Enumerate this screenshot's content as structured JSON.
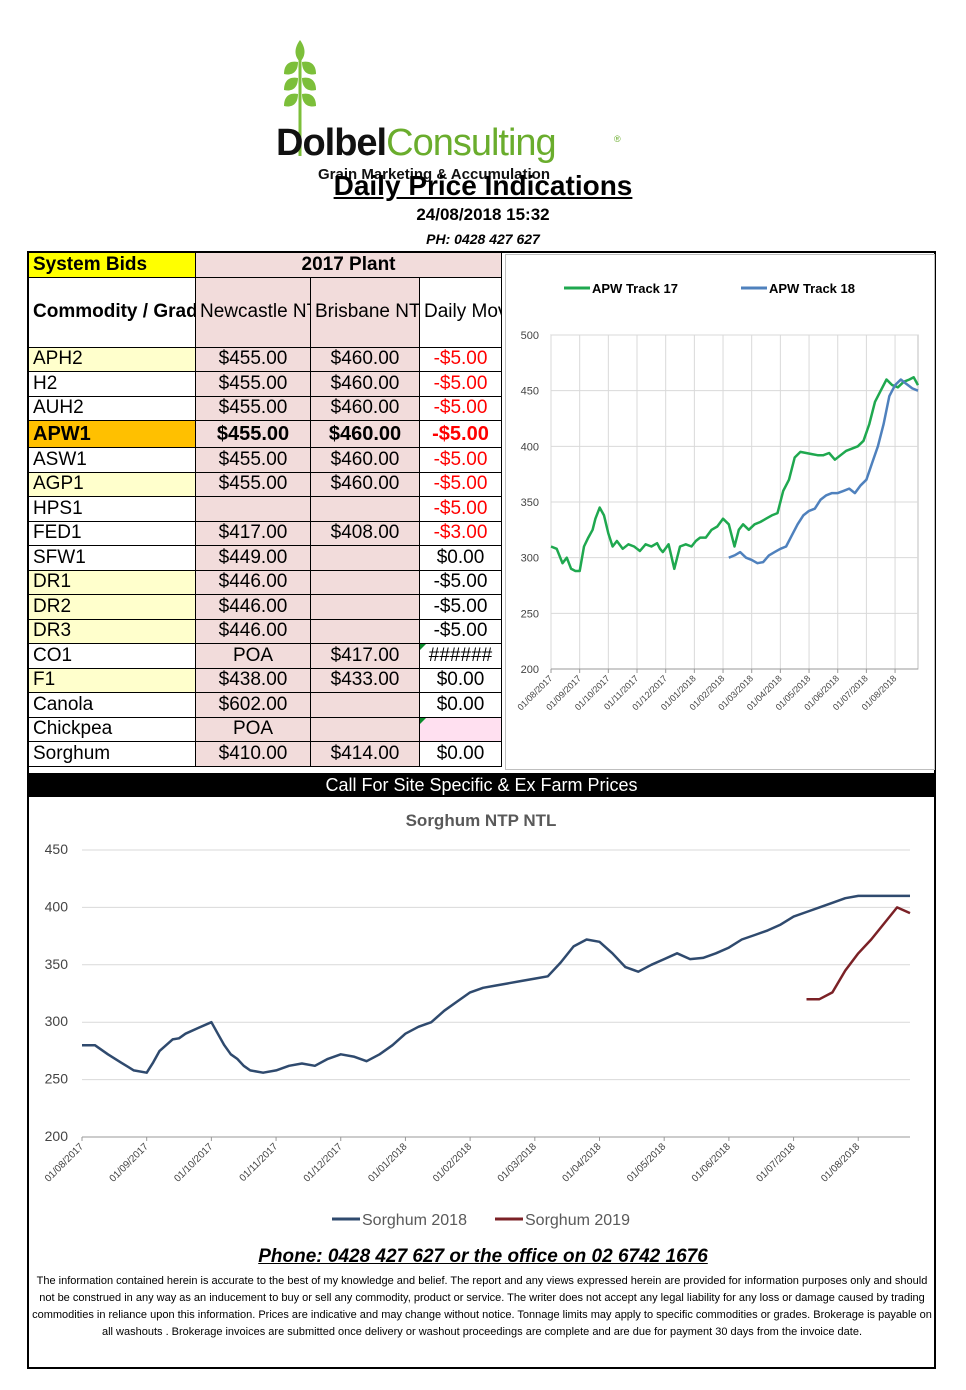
{
  "brand": {
    "name_part1": "Dolbel",
    "name_part2": "Consulting",
    "registered": "®",
    "tagline": "Grain Marketing & Accumulation"
  },
  "header": {
    "title": "Daily Price Indications",
    "datetime": "24/08/2018 15:32",
    "phone": "PH: 0428 427 627"
  },
  "table": {
    "system_bids": "System Bids",
    "plant_label": "2017 Plant",
    "col_commodity": "Commodity / Grade / NTP",
    "col_newcastle": "Newcastle NTP TRK",
    "col_brisbane": "Brisbane NTP TRK",
    "col_move": "Daily Move NTL",
    "rows": [
      {
        "name": "APH2",
        "newcastle": "$455.00",
        "brisbane": "$460.00",
        "move": "-$5.00"
      },
      {
        "name": "H2",
        "newcastle": "$455.00",
        "brisbane": "$460.00",
        "move": "-$5.00"
      },
      {
        "name": "AUH2",
        "newcastle": "$455.00",
        "brisbane": "$460.00",
        "move": "-$5.00"
      },
      {
        "name": "APW1",
        "newcastle": "$455.00",
        "brisbane": "$460.00",
        "move": "-$5.00"
      },
      {
        "name": "ASW1",
        "newcastle": "$455.00",
        "brisbane": "$460.00",
        "move": "-$5.00"
      },
      {
        "name": "AGP1",
        "newcastle": "$455.00",
        "brisbane": "$460.00",
        "move": "-$5.00"
      },
      {
        "name": "HPS1",
        "newcastle": "",
        "brisbane": "",
        "move": "-$5.00"
      },
      {
        "name": "FED1",
        "newcastle": "$417.00",
        "brisbane": "$408.00",
        "move": "-$3.00"
      },
      {
        "name": "SFW1",
        "newcastle": "$449.00",
        "brisbane": "",
        "move": "$0.00"
      },
      {
        "name": "DR1",
        "newcastle": "$446.00",
        "brisbane": "",
        "move": "-$5.00"
      },
      {
        "name": "DR2",
        "newcastle": "$446.00",
        "brisbane": "",
        "move": "-$5.00"
      },
      {
        "name": "DR3",
        "newcastle": "$446.00",
        "brisbane": "",
        "move": "-$5.00"
      },
      {
        "name": "CO1",
        "newcastle": "POA",
        "brisbane": "$417.00",
        "move": "######"
      },
      {
        "name": "F1",
        "newcastle": "$438.00",
        "brisbane": "$433.00",
        "move": "$0.00"
      },
      {
        "name": "Canola",
        "newcastle": "$602.00",
        "brisbane": "",
        "move": "$0.00"
      },
      {
        "name": "Chickpea",
        "newcastle": "POA",
        "brisbane": "",
        "move": ""
      },
      {
        "name": "Sorghum",
        "newcastle": "$410.00",
        "brisbane": "$414.00",
        "move": "$0.00"
      }
    ]
  },
  "call_bar": "Call For Site Specific & Ex Farm Prices",
  "footer": {
    "phone": "Phone: 0428 427 627 or the office on 02 6742 1676",
    "disclaimer": "The information contained herein is accurate to the best of my knowledge and belief.  The report and any views expressed herein are provided for information purposes only and should not be construed in any way as an inducement to buy or sell any commodity, product or service. The writer does not accept any legal liability for any loss or damage caused by trading commodities in reliance upon this information. Prices are indicative and may change without notice. Tonnage limits may apply to specific commodities or grades.  Brokerage is payable on all washouts . Brokerage invoices are submitted once delivery or washout proceedings are complete and are due for payment 30 days from the invoice date."
  },
  "chart_data": [
    {
      "type": "line",
      "title": "",
      "ylim": [
        200,
        500
      ],
      "yticks": [
        200,
        250,
        300,
        350,
        400,
        450,
        500
      ],
      "xticks": [
        "01/08/2017",
        "01/09/2017",
        "01/10/2017",
        "01/11/2017",
        "01/12/2017",
        "01/01/2018",
        "01/02/2018",
        "01/03/2018",
        "01/04/2018",
        "01/05/2018",
        "01/06/2018",
        "01/07/2018",
        "01/08/2018"
      ],
      "grid": true,
      "legend": "top",
      "colors": {
        "APW Track 17": "#1fa84f",
        "APW Track 18": "#4f81bd"
      },
      "series": [
        {
          "name": "APW Track 17",
          "x": [
            0,
            0.2,
            0.4,
            0.55,
            0.7,
            0.85,
            1.0,
            1.15,
            1.3,
            1.45,
            1.55,
            1.7,
            1.85,
            2.0,
            2.15,
            2.3,
            2.5,
            2.7,
            2.9,
            3.1,
            3.3,
            3.5,
            3.7,
            3.8,
            3.9,
            4.1,
            4.3,
            4.5,
            4.7,
            4.9,
            5.05,
            5.2,
            5.4,
            5.6,
            5.8,
            6.0,
            6.2,
            6.4,
            6.55,
            6.7,
            6.9,
            7.1,
            7.3,
            7.5,
            7.7,
            7.9,
            8.1,
            8.3,
            8.5,
            8.7,
            8.9,
            9.1,
            9.3,
            9.5,
            9.7,
            9.9,
            10.1,
            10.3,
            10.5,
            10.7,
            10.9,
            11.1,
            11.3,
            11.5,
            11.7,
            11.9,
            12.1,
            12.3,
            12.5,
            12.65,
            12.8
          ],
          "y": [
            310,
            308,
            295,
            300,
            290,
            288,
            288,
            310,
            318,
            325,
            335,
            345,
            338,
            322,
            310,
            315,
            308,
            312,
            310,
            306,
            312,
            310,
            313,
            308,
            305,
            312,
            290,
            310,
            312,
            310,
            315,
            318,
            318,
            325,
            328,
            335,
            330,
            310,
            325,
            330,
            325,
            330,
            332,
            335,
            338,
            340,
            360,
            370,
            390,
            395,
            394,
            393,
            392,
            392,
            394,
            388,
            392,
            396,
            398,
            400,
            405,
            420,
            440,
            450,
            460,
            455,
            453,
            458,
            460,
            462,
            455
          ]
        },
        {
          "name": "APW Track 18",
          "x": [
            6.2,
            6.4,
            6.6,
            6.8,
            7.0,
            7.2,
            7.4,
            7.6,
            7.8,
            8.0,
            8.2,
            8.4,
            8.6,
            8.8,
            9.0,
            9.2,
            9.4,
            9.6,
            9.8,
            10.0,
            10.2,
            10.4,
            10.6,
            10.8,
            11.0,
            11.2,
            11.4,
            11.6,
            11.8,
            12.0,
            12.2,
            12.4,
            12.6,
            12.8
          ],
          "y": [
            300,
            302,
            305,
            300,
            298,
            295,
            296,
            302,
            305,
            308,
            310,
            320,
            330,
            338,
            342,
            344,
            352,
            356,
            358,
            358,
            360,
            362,
            358,
            365,
            370,
            385,
            400,
            420,
            445,
            455,
            460,
            456,
            452,
            450
          ]
        }
      ]
    },
    {
      "type": "line",
      "title": "Sorghum  NTP NTL",
      "ylim": [
        200,
        450
      ],
      "yticks": [
        200,
        250,
        300,
        350,
        400,
        450
      ],
      "xticks": [
        "01/08/2017",
        "01/09/2017",
        "01/10/2017",
        "01/11/2017",
        "01/12/2017",
        "01/01/2018",
        "01/02/2018",
        "01/03/2018",
        "01/04/2018",
        "01/05/2018",
        "01/06/2018",
        "01/07/2018",
        "01/08/2018"
      ],
      "grid": true,
      "legend": "bottom",
      "colors": {
        "Sorghum 2018": "#2f4a6e",
        "Sorghum 2019": "#7b2126"
      },
      "series": [
        {
          "name": "Sorghum 2018",
          "x": [
            0,
            0.2,
            0.4,
            0.6,
            0.8,
            1.0,
            1.1,
            1.2,
            1.3,
            1.4,
            1.5,
            1.6,
            1.8,
            2.0,
            2.1,
            2.2,
            2.3,
            2.4,
            2.5,
            2.6,
            2.8,
            3.0,
            3.2,
            3.4,
            3.6,
            3.8,
            4.0,
            4.2,
            4.4,
            4.6,
            4.8,
            5.0,
            5.2,
            5.4,
            5.6,
            5.8,
            6.0,
            6.2,
            6.4,
            6.6,
            6.8,
            7.0,
            7.2,
            7.4,
            7.6,
            7.8,
            8.0,
            8.2,
            8.4,
            8.6,
            8.8,
            9.0,
            9.2,
            9.4,
            9.6,
            9.8,
            10.0,
            10.2,
            10.4,
            10.6,
            10.8,
            11.0,
            11.2,
            11.4,
            11.6,
            11.8,
            12.0,
            12.2,
            12.4,
            12.6,
            12.8
          ],
          "y": [
            280,
            280,
            272,
            265,
            258,
            256,
            265,
            275,
            280,
            285,
            286,
            290,
            295,
            300,
            290,
            280,
            272,
            268,
            262,
            258,
            256,
            258,
            262,
            264,
            262,
            268,
            272,
            270,
            266,
            272,
            280,
            290,
            296,
            300,
            310,
            318,
            326,
            330,
            332,
            334,
            336,
            338,
            340,
            352,
            366,
            372,
            370,
            360,
            348,
            344,
            350,
            355,
            360,
            355,
            356,
            360,
            365,
            372,
            376,
            380,
            385,
            392,
            396,
            400,
            404,
            408,
            410,
            410,
            410,
            410,
            410
          ]
        },
        {
          "name": "Sorghum 2019",
          "x": [
            11.2,
            11.4,
            11.6,
            11.8,
            12.0,
            12.2,
            12.4,
            12.6,
            12.8
          ],
          "y": [
            320,
            320,
            326,
            345,
            360,
            372,
            386,
            400,
            395
          ]
        }
      ]
    }
  ]
}
